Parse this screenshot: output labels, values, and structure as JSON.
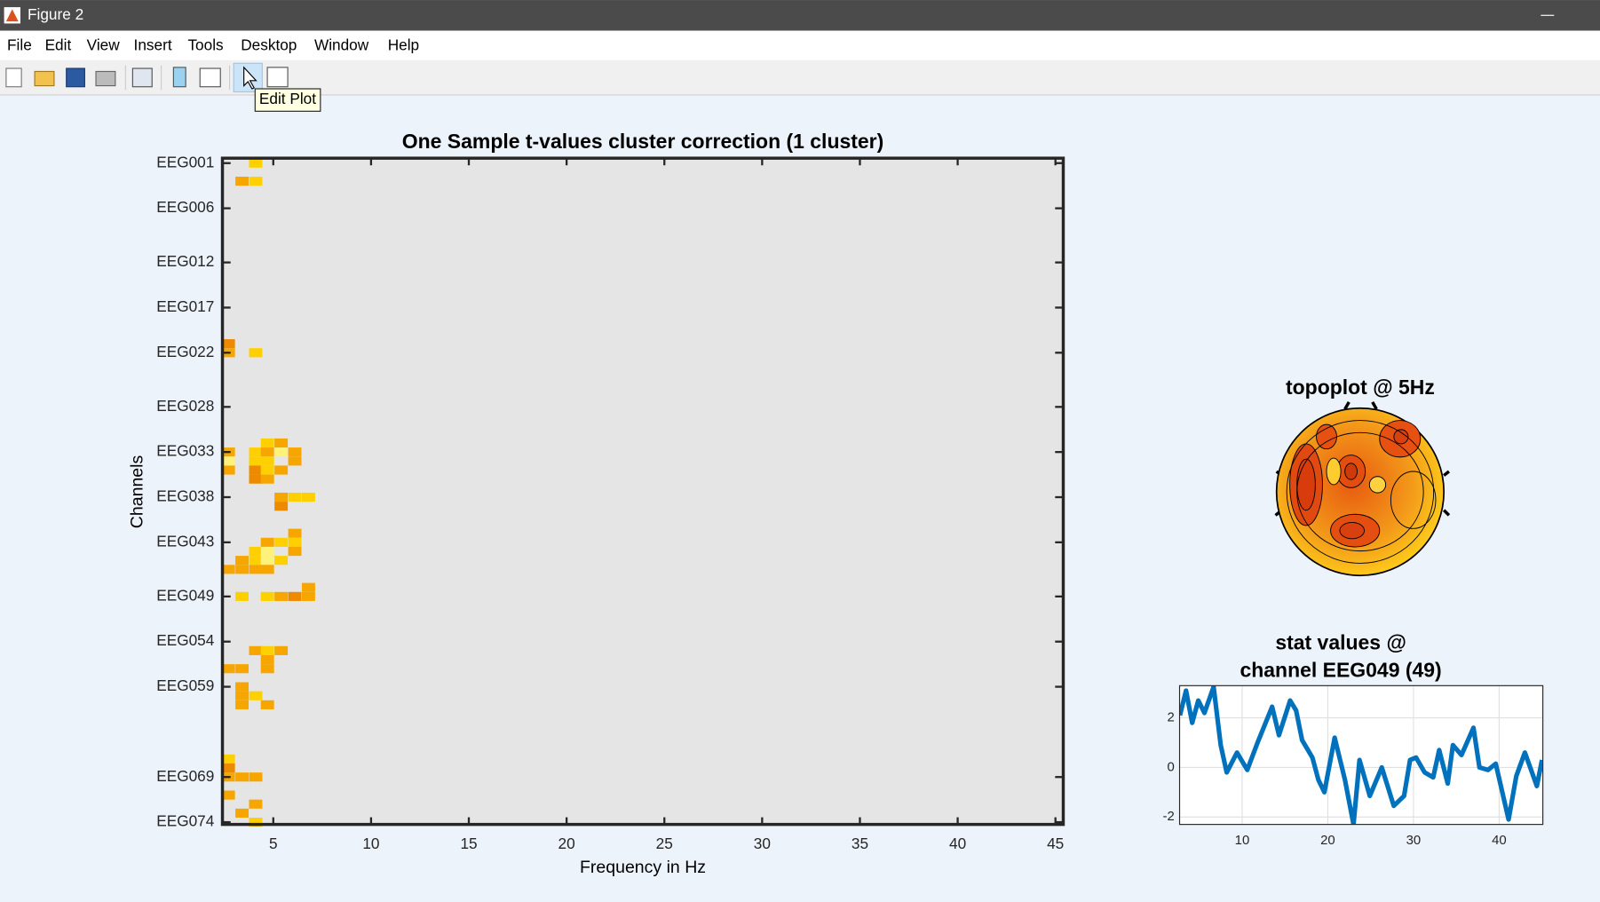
{
  "window": {
    "title": "Figure 2",
    "menu": [
      "File",
      "Edit",
      "View",
      "Insert",
      "Tools",
      "Desktop",
      "Window",
      "Help"
    ],
    "tooltip": "Edit Plot"
  },
  "chart_data": [
    {
      "type": "heatmap",
      "title": "One Sample t-values cluster correction (1 cluster)",
      "xlabel": "Frequency in Hz",
      "ylabel": "Channels",
      "xlim": [
        2.4,
        45.4
      ],
      "xticks": [
        5,
        10,
        15,
        20,
        25,
        30,
        35,
        40,
        45
      ],
      "ylim": [
        0.45,
        74.25
      ],
      "y_reversed": true,
      "yticks": [
        {
          "value": 1,
          "label": "EEG001"
        },
        {
          "value": 6,
          "label": "EEG006"
        },
        {
          "value": 12,
          "label": "EEG012"
        },
        {
          "value": 17,
          "label": "EEG017"
        },
        {
          "value": 22,
          "label": "EEG022"
        },
        {
          "value": 28,
          "label": "EEG028"
        },
        {
          "value": 33,
          "label": "EEG033"
        },
        {
          "value": 38,
          "label": "EEG038"
        },
        {
          "value": 43,
          "label": "EEG043"
        },
        {
          "value": 49,
          "label": "EEG049"
        },
        {
          "value": 54,
          "label": "EEG054"
        },
        {
          "value": 59,
          "label": "EEG059"
        },
        {
          "value": 69,
          "label": "EEG069"
        },
        {
          "value": 74,
          "label": "EEG074"
        }
      ],
      "background": "#e5e5e5",
      "cells": {
        "x": [
          4.1,
          3.4,
          4.1,
          2.7,
          2.7,
          4.1,
          4.7,
          5.4,
          2.7,
          4.1,
          4.7,
          5.4,
          6.1,
          2.7,
          4.1,
          4.7,
          6.1,
          2.7,
          4.1,
          4.7,
          5.4,
          4.1,
          4.7,
          5.4,
          6.1,
          6.8,
          5.4,
          6.1,
          4.7,
          5.4,
          6.1,
          4.1,
          4.7,
          6.1,
          3.4,
          4.1,
          4.7,
          5.4,
          2.7,
          3.4,
          4.1,
          4.7,
          6.8,
          3.4,
          4.7,
          5.4,
          6.1,
          6.8,
          4.1,
          4.7,
          5.4,
          4.7,
          2.7,
          3.4,
          4.7,
          3.4,
          3.4,
          4.1,
          3.4,
          4.7,
          2.7,
          2.7,
          2.7,
          3.4,
          4.1,
          2.7,
          4.1,
          3.4,
          4.1
        ],
        "y": [
          1,
          3,
          3,
          21,
          22,
          22,
          32,
          32,
          33,
          33,
          33,
          33,
          33,
          34,
          34,
          34,
          34,
          35,
          35,
          35,
          35,
          36,
          36,
          38,
          38,
          38,
          39,
          42,
          43,
          43,
          43,
          44,
          44,
          44,
          45,
          45,
          45,
          45,
          46,
          46,
          46,
          46,
          48,
          49,
          49,
          49,
          49,
          49,
          55,
          55,
          55,
          56,
          57,
          57,
          57,
          59,
          60,
          60,
          61,
          61,
          67,
          68,
          69,
          69,
          69,
          71,
          72,
          73,
          74
        ],
        "colors": [
          "#ffd000",
          "#f7a600",
          "#ffd000",
          "#ee8a00",
          "#f7a600",
          "#ffd000",
          "#ffd000",
          "#f7a600",
          "#f7a600",
          "#ffd000",
          "#f7a600",
          "#fff27a",
          "#f7a600",
          "#fff27a",
          "#ffd000",
          "#ffd000",
          "#f7a600",
          "#f7a600",
          "#ee8a00",
          "#ffd000",
          "#f7a600",
          "#ee8a00",
          "#f7a600",
          "#f7a600",
          "#ffd000",
          "#ffd000",
          "#ee8a00",
          "#f7a600",
          "#f7a600",
          "#ffd000",
          "#ffd000",
          "#ffd000",
          "#fff27a",
          "#f7a600",
          "#f7a600",
          "#ffd000",
          "#fff27a",
          "#ffd000",
          "#f7a600",
          "#f7a600",
          "#f7a600",
          "#f7a600",
          "#f7a600",
          "#ffd000",
          "#ffd000",
          "#f7a600",
          "#ee8a00",
          "#f7a600",
          "#f7a600",
          "#ffd000",
          "#f7a600",
          "#f7a600",
          "#f7a600",
          "#f7a600",
          "#f7a600",
          "#f7a600",
          "#f7a600",
          "#ffd000",
          "#f7a600",
          "#f7a600",
          "#ffd000",
          "#ee8a00",
          "#f7a600",
          "#f7a600",
          "#f7a600",
          "#f7a600",
          "#f7a600",
          "#f7a600",
          "#ffd000"
        ]
      }
    },
    {
      "type": "topoplot",
      "title": "topoplot @ 5Hz"
    },
    {
      "type": "line",
      "title": [
        "stat values @",
        "channel EEG049 (49)"
      ],
      "x": [
        2.74,
        3.45,
        4.17,
        4.88,
        5.6,
        6.67,
        7.5,
        8.2,
        9.4,
        10.6,
        11.8,
        13.5,
        14.3,
        15.6,
        16.3,
        17.0,
        18.2,
        18.9,
        19.6,
        20.8,
        22.0,
        23.0,
        23.7,
        24.9,
        26.3,
        27.7,
        28.9,
        29.6,
        30.3,
        31.3,
        32.3,
        33.0,
        34.0,
        34.6,
        35.6,
        37.0,
        37.7,
        38.7,
        39.6,
        41.1,
        42.0,
        43.0,
        44.4,
        45.0
      ],
      "series": [
        {
          "color": "#0072bd",
          "values": [
            2.1,
            3.1,
            1.8,
            2.7,
            2.2,
            3.25,
            0.9,
            -0.2,
            0.6,
            -0.1,
            1.0,
            2.45,
            1.3,
            2.7,
            2.3,
            1.1,
            0.4,
            -0.5,
            -1.0,
            1.2,
            -0.5,
            -2.3,
            0.3,
            -1.15,
            0,
            -1.55,
            -1.15,
            0.3,
            0.4,
            -0.2,
            -0.4,
            0.7,
            -0.65,
            0.9,
            0.5,
            1.6,
            0,
            -0.1,
            0.15,
            -2.1,
            -0.35,
            0.6,
            -0.75,
            0.3
          ]
        }
      ],
      "xlim": [
        2.7,
        45.1
      ],
      "ylim": [
        -2.3,
        3.3
      ],
      "xticks": [
        10,
        20,
        30,
        40
      ],
      "yticks": [
        -2,
        0,
        2
      ],
      "grid": true
    }
  ]
}
